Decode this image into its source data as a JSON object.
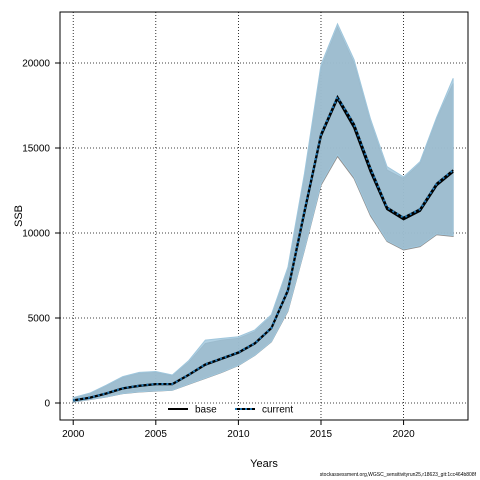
{
  "chart_data": {
    "type": "line",
    "xlabel": "Years",
    "ylabel": "SSB",
    "xlim": [
      1999.2,
      2023.9
    ],
    "ylim": [
      -1000,
      23000
    ],
    "x_ticks": [
      2000,
      2005,
      2010,
      2015,
      2020
    ],
    "y_ticks": [
      0,
      5000,
      10000,
      15000,
      20000
    ],
    "grid": true,
    "legend_position": "bottom-center",
    "x": [
      2000,
      2001,
      2002,
      2003,
      2004,
      2005,
      2006,
      2007,
      2008,
      2009,
      2010,
      2011,
      2012,
      2013,
      2014,
      2015,
      2016,
      2017,
      2018,
      2019,
      2020,
      2021,
      2022,
      2023
    ],
    "series": [
      {
        "name": "base",
        "color": "#000000",
        "dash": "solid",
        "values": [
          150,
          300,
          550,
          850,
          1000,
          1100,
          1100,
          1650,
          2250,
          2600,
          2950,
          3500,
          4400,
          6600,
          11200,
          15700,
          17900,
          16200,
          13600,
          11400,
          10800,
          11300,
          12800,
          13600
        ],
        "lower": [
          50,
          200,
          350,
          550,
          650,
          700,
          750,
          1100,
          1450,
          1800,
          2200,
          2800,
          3600,
          5400,
          9000,
          12800,
          14500,
          13200,
          11000,
          9500,
          9000,
          9200,
          9900,
          9800
        ],
        "upper": [
          300,
          550,
          1000,
          1500,
          1750,
          1800,
          1600,
          2400,
          3500,
          3700,
          3800,
          4200,
          5100,
          7800,
          13300,
          19700,
          22100,
          20000,
          16500,
          13700,
          13200,
          14100,
          16700,
          18800
        ]
      },
      {
        "name": "current",
        "color": "#1f77b4",
        "dash": "dotted",
        "values": [
          160,
          320,
          570,
          870,
          1020,
          1120,
          1120,
          1670,
          2280,
          2630,
          2980,
          3520,
          4420,
          6650,
          11300,
          15800,
          18000,
          16400,
          13800,
          11500,
          10900,
          11400,
          12900,
          13700
        ],
        "lower": [
          60,
          210,
          360,
          560,
          660,
          710,
          760,
          1120,
          1470,
          1820,
          2220,
          2820,
          3620,
          5450,
          9050,
          12900,
          14600,
          13300,
          11100,
          9550,
          9050,
          9250,
          9950,
          9850
        ],
        "upper": [
          320,
          580,
          1050,
          1550,
          1800,
          1850,
          1650,
          2500,
          3700,
          3800,
          3900,
          4300,
          5200,
          8000,
          13500,
          19900,
          22300,
          20200,
          16700,
          13900,
          13300,
          14200,
          16800,
          19100
        ]
      }
    ]
  },
  "footer_text": "stockassessment.org,WGSC_sensitivityrun25,r18623_git:1cc464b808f"
}
